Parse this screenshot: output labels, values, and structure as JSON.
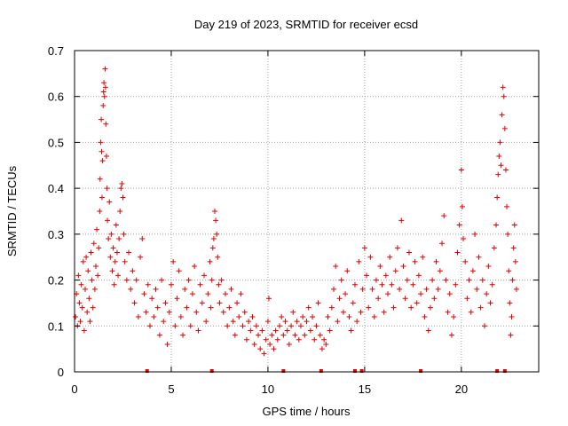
{
  "chart_data": {
    "type": "scatter",
    "title": "Day 219 of 2023, SRMTID for receiver ecsd",
    "xlabel": "GPS time / hours",
    "ylabel": "SRMTID / TECUs",
    "xlim": [
      0,
      24
    ],
    "ylim": [
      0,
      0.7
    ],
    "xticks": [
      0,
      5,
      10,
      15,
      20
    ],
    "yticks": [
      0,
      0.1,
      0.2,
      0.3,
      0.4,
      0.5,
      0.6,
      0.7
    ],
    "xtick_labels": [
      "0",
      "5",
      "10",
      "15",
      "20"
    ],
    "ytick_labels": [
      "0",
      "0.1",
      "0.2",
      "0.3",
      "0.4",
      "0.5",
      "0.6",
      "0.7"
    ],
    "grid": true,
    "marker": "+",
    "color": "#e00000",
    "series": [
      {
        "name": "SRMTID",
        "points": [
          [
            0.05,
            0.12
          ],
          [
            0.1,
            0.17
          ],
          [
            0.15,
            0.1
          ],
          [
            0.2,
            0.21
          ],
          [
            0.25,
            0.15
          ],
          [
            0.3,
            0.11
          ],
          [
            0.35,
            0.19
          ],
          [
            0.4,
            0.14
          ],
          [
            0.45,
            0.24
          ],
          [
            0.5,
            0.09
          ],
          [
            0.55,
            0.18
          ],
          [
            0.6,
            0.25
          ],
          [
            0.65,
            0.13
          ],
          [
            0.7,
            0.22
          ],
          [
            0.75,
            0.16
          ],
          [
            0.8,
            0.11
          ],
          [
            0.85,
            0.26
          ],
          [
            0.9,
            0.2
          ],
          [
            0.95,
            0.14
          ],
          [
            1.0,
            0.28
          ],
          [
            1.05,
            0.18
          ],
          [
            1.1,
            0.23
          ],
          [
            1.15,
            0.31
          ],
          [
            1.2,
            0.21
          ],
          [
            1.25,
            0.27
          ],
          [
            1.3,
            0.35
          ],
          [
            1.32,
            0.42
          ],
          [
            1.35,
            0.5
          ],
          [
            1.38,
            0.55
          ],
          [
            1.4,
            0.48
          ],
          [
            1.42,
            0.38
          ],
          [
            1.45,
            0.46
          ],
          [
            1.48,
            0.58
          ],
          [
            1.5,
            0.61
          ],
          [
            1.52,
            0.63
          ],
          [
            1.55,
            0.6
          ],
          [
            1.58,
            0.66
          ],
          [
            1.6,
            0.62
          ],
          [
            1.62,
            0.54
          ],
          [
            1.65,
            0.47
          ],
          [
            1.68,
            0.4
          ],
          [
            1.7,
            0.33
          ],
          [
            1.75,
            0.29
          ],
          [
            1.8,
            0.37
          ],
          [
            1.85,
            0.25
          ],
          [
            1.9,
            0.3
          ],
          [
            1.95,
            0.22
          ],
          [
            2.0,
            0.27
          ],
          [
            2.05,
            0.19
          ],
          [
            2.1,
            0.24
          ],
          [
            2.15,
            0.32
          ],
          [
            2.2,
            0.26
          ],
          [
            2.25,
            0.21
          ],
          [
            2.3,
            0.29
          ],
          [
            2.35,
            0.35
          ],
          [
            2.4,
            0.4
          ],
          [
            2.45,
            0.41
          ],
          [
            2.5,
            0.38
          ],
          [
            2.55,
            0.3
          ],
          [
            2.6,
            0.24
          ],
          [
            2.7,
            0.2
          ],
          [
            2.8,
            0.26
          ],
          [
            2.9,
            0.18
          ],
          [
            3.0,
            0.22
          ],
          [
            3.1,
            0.15
          ],
          [
            3.2,
            0.2
          ],
          [
            3.3,
            0.12
          ],
          [
            3.4,
            0.25
          ],
          [
            3.5,
            0.29
          ],
          [
            3.6,
            0.17
          ],
          [
            3.7,
            0.13
          ],
          [
            3.8,
            0.19
          ],
          [
            3.9,
            0.1
          ],
          [
            4.0,
            0.16
          ],
          [
            4.1,
            0.12
          ],
          [
            4.2,
            0.18
          ],
          [
            4.3,
            0.14
          ],
          [
            4.4,
            0.08
          ],
          [
            4.5,
            0.2
          ],
          [
            4.6,
            0.11
          ],
          [
            4.7,
            0.15
          ],
          [
            4.8,
            0.06
          ],
          [
            4.9,
            0.13
          ],
          [
            5.0,
            0.19
          ],
          [
            5.1,
            0.24
          ],
          [
            5.2,
            0.1
          ],
          [
            5.3,
            0.16
          ],
          [
            5.4,
            0.22
          ],
          [
            5.5,
            0.12
          ],
          [
            5.6,
            0.08
          ],
          [
            5.7,
            0.18
          ],
          [
            5.8,
            0.14
          ],
          [
            5.9,
            0.2
          ],
          [
            6.0,
            0.1
          ],
          [
            6.1,
            0.17
          ],
          [
            6.2,
            0.23
          ],
          [
            6.3,
            0.13
          ],
          [
            6.4,
            0.09
          ],
          [
            6.5,
            0.19
          ],
          [
            6.6,
            0.15
          ],
          [
            6.7,
            0.21
          ],
          [
            6.8,
            0.11
          ],
          [
            6.9,
            0.17
          ],
          [
            7.0,
            0.24
          ],
          [
            7.05,
            0.14
          ],
          [
            7.1,
            0.2
          ],
          [
            7.15,
            0.27
          ],
          [
            7.2,
            0.29
          ],
          [
            7.25,
            0.35
          ],
          [
            7.3,
            0.33
          ],
          [
            7.35,
            0.3
          ],
          [
            7.4,
            0.25
          ],
          [
            7.45,
            0.19
          ],
          [
            7.5,
            0.15
          ],
          [
            7.6,
            0.2
          ],
          [
            7.7,
            0.13
          ],
          [
            7.8,
            0.17
          ],
          [
            7.9,
            0.1
          ],
          [
            8.0,
            0.14
          ],
          [
            8.1,
            0.18
          ],
          [
            8.2,
            0.11
          ],
          [
            8.3,
            0.08
          ],
          [
            8.4,
            0.15
          ],
          [
            8.5,
            0.12
          ],
          [
            8.6,
            0.17
          ],
          [
            8.7,
            0.1
          ],
          [
            8.8,
            0.13
          ],
          [
            8.9,
            0.07
          ],
          [
            9.0,
            0.11
          ],
          [
            9.1,
            0.09
          ],
          [
            9.2,
            0.12
          ],
          [
            9.3,
            0.06
          ],
          [
            9.4,
            0.1
          ],
          [
            9.5,
            0.08
          ],
          [
            9.6,
            0.05
          ],
          [
            9.7,
            0.09
          ],
          [
            9.8,
            0.04
          ],
          [
            9.9,
            0.07
          ],
          [
            10.0,
            0.11
          ],
          [
            10.05,
            0.16
          ],
          [
            10.1,
            0.06
          ],
          [
            10.2,
            0.08
          ],
          [
            10.3,
            0.05
          ],
          [
            10.4,
            0.09
          ],
          [
            10.5,
            0.07
          ],
          [
            10.6,
            0.1
          ],
          [
            10.7,
            0.12
          ],
          [
            10.8,
            0.08
          ],
          [
            10.9,
            0.11
          ],
          [
            11.0,
            0.09
          ],
          [
            11.1,
            0.06
          ],
          [
            11.2,
            0.1
          ],
          [
            11.3,
            0.13
          ],
          [
            11.4,
            0.08
          ],
          [
            11.5,
            0.11
          ],
          [
            11.6,
            0.07
          ],
          [
            11.7,
            0.1
          ],
          [
            11.8,
            0.12
          ],
          [
            11.9,
            0.08
          ],
          [
            12.0,
            0.11
          ],
          [
            12.1,
            0.14
          ],
          [
            12.2,
            0.09
          ],
          [
            12.3,
            0.12
          ],
          [
            12.4,
            0.07
          ],
          [
            12.5,
            0.1
          ],
          [
            12.6,
            0.15
          ],
          [
            12.7,
            0.08
          ],
          [
            12.8,
            0.05
          ],
          [
            12.9,
            0.07
          ],
          [
            13.0,
            0.06
          ],
          [
            13.1,
            0.12
          ],
          [
            13.2,
            0.09
          ],
          [
            13.3,
            0.14
          ],
          [
            13.4,
            0.18
          ],
          [
            13.5,
            0.23
          ],
          [
            13.6,
            0.11
          ],
          [
            13.7,
            0.16
          ],
          [
            13.8,
            0.2
          ],
          [
            13.9,
            0.13
          ],
          [
            14.0,
            0.17
          ],
          [
            14.1,
            0.22
          ],
          [
            14.2,
            0.12
          ],
          [
            14.3,
            0.09
          ],
          [
            14.4,
            0.15
          ],
          [
            14.5,
            0.19
          ],
          [
            14.6,
            0.11
          ],
          [
            14.7,
            0.24
          ],
          [
            14.8,
            0.13
          ],
          [
            14.9,
            0.18
          ],
          [
            15.0,
            0.27
          ],
          [
            15.1,
            0.21
          ],
          [
            15.2,
            0.14
          ],
          [
            15.3,
            0.25
          ],
          [
            15.4,
            0.18
          ],
          [
            15.5,
            0.12
          ],
          [
            15.6,
            0.2
          ],
          [
            15.7,
            0.16
          ],
          [
            15.8,
            0.23
          ],
          [
            15.9,
            0.19
          ],
          [
            16.0,
            0.13
          ],
          [
            16.1,
            0.21
          ],
          [
            16.2,
            0.17
          ],
          [
            16.3,
            0.25
          ],
          [
            16.4,
            0.19
          ],
          [
            16.5,
            0.14
          ],
          [
            16.6,
            0.22
          ],
          [
            16.7,
            0.27
          ],
          [
            16.8,
            0.18
          ],
          [
            16.9,
            0.33
          ],
          [
            17.0,
            0.23
          ],
          [
            17.1,
            0.16
          ],
          [
            17.2,
            0.2
          ],
          [
            17.3,
            0.26
          ],
          [
            17.4,
            0.14
          ],
          [
            17.5,
            0.19
          ],
          [
            17.6,
            0.24
          ],
          [
            17.7,
            0.15
          ],
          [
            17.8,
            0.21
          ],
          [
            17.9,
            0.17
          ],
          [
            18.0,
            0.25
          ],
          [
            18.1,
            0.12
          ],
          [
            18.2,
            0.18
          ],
          [
            18.3,
            0.09
          ],
          [
            18.4,
            0.14
          ],
          [
            18.5,
            0.2
          ],
          [
            18.6,
            0.16
          ],
          [
            18.7,
            0.24
          ],
          [
            18.8,
            0.18
          ],
          [
            18.9,
            0.22
          ],
          [
            19.0,
            0.28
          ],
          [
            19.1,
            0.34
          ],
          [
            19.2,
            0.2
          ],
          [
            19.3,
            0.13
          ],
          [
            19.4,
            0.17
          ],
          [
            19.5,
            0.08
          ],
          [
            19.6,
            0.12
          ],
          [
            19.7,
            0.19
          ],
          [
            19.8,
            0.26
          ],
          [
            19.9,
            0.32
          ],
          [
            20.0,
            0.44
          ],
          [
            20.05,
            0.36
          ],
          [
            20.1,
            0.29
          ],
          [
            20.2,
            0.24
          ],
          [
            20.3,
            0.16
          ],
          [
            20.4,
            0.2
          ],
          [
            20.5,
            0.13
          ],
          [
            20.6,
            0.22
          ],
          [
            20.7,
            0.3
          ],
          [
            20.8,
            0.18
          ],
          [
            20.9,
            0.25
          ],
          [
            21.0,
            0.14
          ],
          [
            21.1,
            0.2
          ],
          [
            21.2,
            0.1
          ],
          [
            21.3,
            0.17
          ],
          [
            21.4,
            0.23
          ],
          [
            21.5,
            0.15
          ],
          [
            21.6,
            0.19
          ],
          [
            21.7,
            0.27
          ],
          [
            21.8,
            0.32
          ],
          [
            21.85,
            0.38
          ],
          [
            21.9,
            0.43
          ],
          [
            21.95,
            0.47
          ],
          [
            22.0,
            0.5
          ],
          [
            22.05,
            0.45
          ],
          [
            22.1,
            0.56
          ],
          [
            22.15,
            0.62
          ],
          [
            22.2,
            0.6
          ],
          [
            22.25,
            0.53
          ],
          [
            22.3,
            0.44
          ],
          [
            22.35,
            0.36
          ],
          [
            22.4,
            0.3
          ],
          [
            22.45,
            0.22
          ],
          [
            22.5,
            0.15
          ],
          [
            22.55,
            0.08
          ],
          [
            22.6,
            0.12
          ],
          [
            22.65,
            0.2
          ],
          [
            22.7,
            0.27
          ],
          [
            22.75,
            0.32
          ],
          [
            22.8,
            0.24
          ],
          [
            22.85,
            0.18
          ]
        ]
      }
    ]
  }
}
